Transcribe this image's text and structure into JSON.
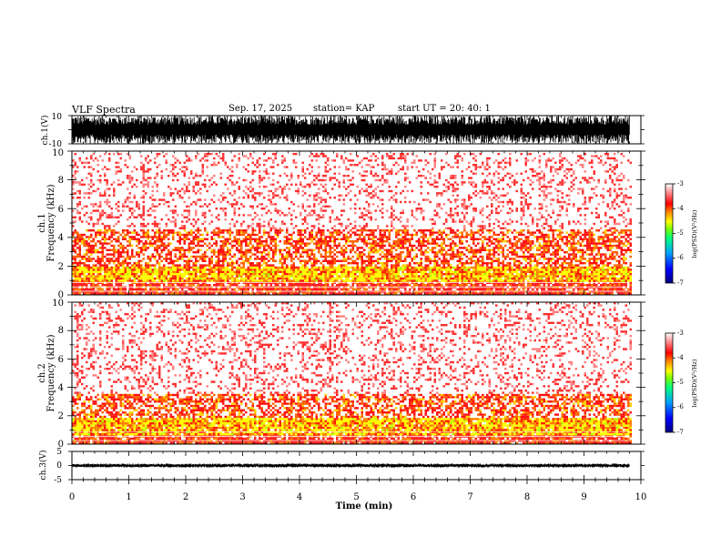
{
  "header": {
    "title": "VLF Spectra",
    "date": "Sep. 17, 2025",
    "station": "station= KAP",
    "start": "start  UT  =   20: 40:  1"
  },
  "chart_data": {
    "type": "heatmap",
    "title": "VLF Spectra",
    "xlabel": "Time  (min)",
    "xlim": [
      0,
      10
    ],
    "xticks": [
      "0",
      "1",
      "2",
      "3",
      "4",
      "5",
      "6",
      "7",
      "8",
      "9",
      "10"
    ],
    "data_end_min": 9.8,
    "panels": [
      {
        "name": "ch1-waveform",
        "type": "line",
        "ylabel": "ch.1(V)",
        "ylim": [
          -10,
          10
        ],
        "yticks": [
          "10",
          "-10"
        ],
        "amplitude_range": [
          -10,
          10
        ]
      },
      {
        "name": "ch1-spectrogram",
        "type": "heatmap",
        "ylabel_line1": "ch.1",
        "ylabel_line2": "Frequency  (kHz)",
        "ylim": [
          0,
          10
        ],
        "yticks": [
          "0",
          "2",
          "4",
          "6",
          "8",
          "10"
        ],
        "colorbar_label": "log(PSD)(V²/Hz)",
        "colorbar_ticks": [
          "-3",
          "-4",
          "-5",
          "-6",
          "-7"
        ],
        "colorbar_range": [
          -7,
          -3
        ],
        "strong_band_khz": [
          0.9,
          2.0
        ],
        "moderate_band_khz": [
          2.0,
          4.5
        ]
      },
      {
        "name": "ch2-spectrogram",
        "type": "heatmap",
        "ylabel_line1": "ch.2",
        "ylabel_line2": "Frequency  (kHz)",
        "ylim": [
          0,
          10
        ],
        "yticks": [
          "0",
          "2",
          "4",
          "6",
          "8",
          "10"
        ],
        "colorbar_label": "log(PSD)(V²/Hz)",
        "colorbar_ticks": [
          "-3",
          "-4",
          "-5",
          "-6",
          "-7"
        ],
        "colorbar_range": [
          -7,
          -3
        ],
        "strong_band_khz": [
          0.6,
          1.8
        ],
        "moderate_band_khz": [
          1.8,
          3.5
        ]
      },
      {
        "name": "ch3-waveform",
        "type": "line",
        "ylabel": "ch.3(V)",
        "ylim": [
          -5,
          5
        ],
        "yticks": [
          "5",
          "0",
          "-5"
        ],
        "amplitude_range": [
          -0.7,
          0.7
        ]
      }
    ],
    "colormap": [
      "#000080",
      "#0000ff",
      "#00a0ff",
      "#00ff80",
      "#80ff00",
      "#ffff00",
      "#ff8000",
      "#ff0000",
      "#ffffff"
    ]
  }
}
